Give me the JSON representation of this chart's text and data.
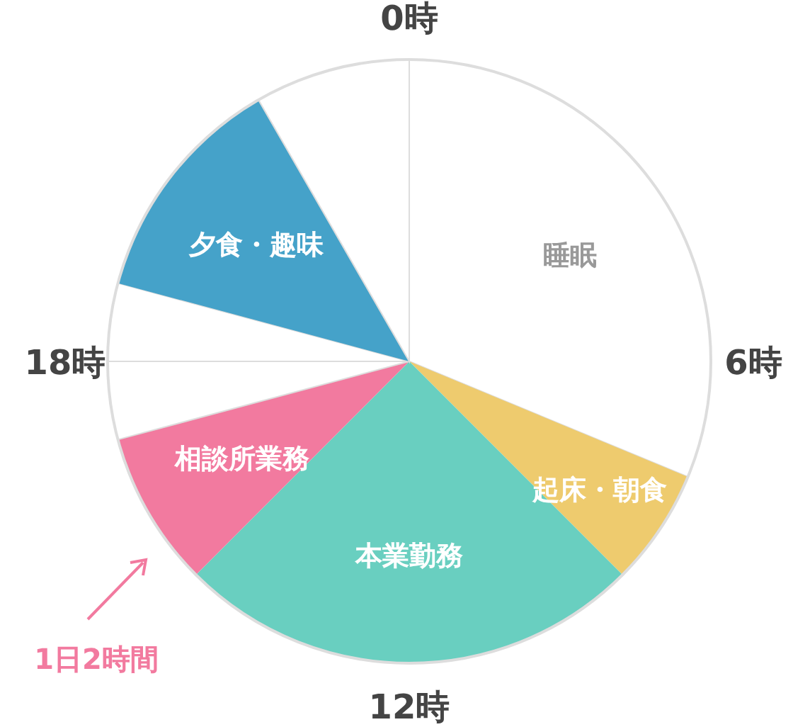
{
  "chart_data": {
    "type": "pie",
    "categories": [
      "睡眠",
      "起床・朝食",
      "本業勤務",
      "相談所業務",
      null,
      null,
      "夕食・趣味",
      null
    ],
    "values": [
      31.25,
      6.25,
      25,
      8.33,
      4.17,
      4.17,
      12.5,
      8.33
    ],
    "colors": [
      "#ffffff",
      "#eecb6e",
      "#69cfc0",
      "#f27a9f",
      "#ffffff",
      "#ffffff",
      "#45a2c9",
      "#ffffff"
    ],
    "annotations": [
      "0時",
      "6時",
      "12時",
      "18時",
      {
        "text": "1日2時間",
        "x": "相談所業務"
      }
    ]
  }
}
